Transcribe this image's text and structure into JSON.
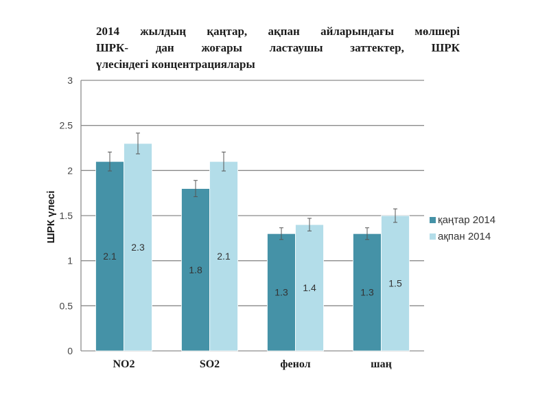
{
  "title_lines": [
    "2014 жылдың қаңтар, ақпан айларындағы мөлшері",
    "ШРК- дан жоғары ластаушы заттектер,  ШРК",
    "үлесіндегі концентрациялары"
  ],
  "chart_data": {
    "type": "bar",
    "title": "2014 жылдың қаңтар, ақпан айларындағы мөлшері ШРК- дан жоғары ластаушы заттектер,  ШРК үлесіндегі концентрациялары",
    "xlabel": "",
    "ylabel": "ШРК үлесі",
    "categories": [
      "NO2",
      "SO2",
      "фенол",
      "шаң"
    ],
    "series": [
      {
        "name": "қаңтар 2014",
        "color": "#4592a7",
        "values": [
          2.1,
          1.8,
          1.3,
          1.3
        ],
        "labels": [
          "2.1",
          "1.8",
          "1.3",
          "1.3"
        ]
      },
      {
        "name": "ақпан 2014",
        "color": "#b3dde9",
        "values": [
          2.3,
          2.1,
          1.4,
          1.5
        ],
        "labels": [
          "2.3",
          "2.1",
          "1.4",
          "1.5"
        ]
      }
    ],
    "error_bars": true,
    "ylim": [
      0,
      3
    ],
    "yticks": [
      "0",
      "0.5",
      "1",
      "1.5",
      "2",
      "2.5",
      "3"
    ],
    "grid": true,
    "legend_position": "right"
  }
}
